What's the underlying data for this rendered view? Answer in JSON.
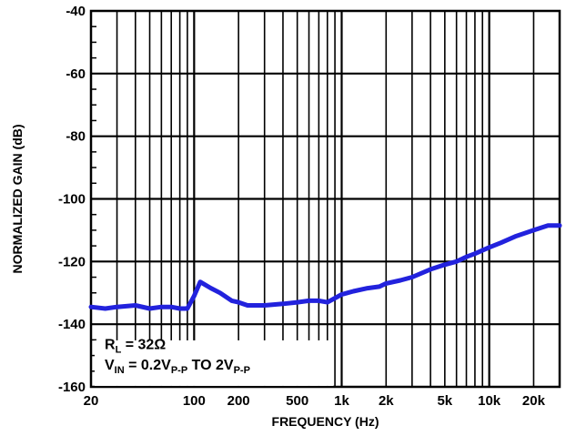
{
  "chart_data": {
    "type": "line",
    "title": "",
    "xlabel": "FREQUENCY (Hz)",
    "ylabel": "NORMALIZED GAIN (dB)",
    "xscale": "log",
    "xlim": [
      20,
      30000
    ],
    "ylim": [
      -160,
      -40
    ],
    "grid": true,
    "x_ticks": [
      20,
      100,
      200,
      500,
      1000,
      2000,
      5000,
      10000,
      20000
    ],
    "x_tick_labels": [
      "20",
      "100",
      "200",
      "500",
      "1k",
      "2k",
      "5k",
      "10k",
      "20k"
    ],
    "y_ticks": [
      -160,
      -140,
      -120,
      -100,
      -80,
      -60,
      -40
    ],
    "y_tick_labels": [
      "-160",
      "-140",
      "-120",
      "-100",
      "-80",
      "-60",
      "-40"
    ],
    "series_color": "#2222dd",
    "series": [
      {
        "x": [
          20,
          25,
          30,
          40,
          50,
          60,
          70,
          80,
          90,
          100,
          110,
          130,
          150,
          180,
          200,
          230,
          300,
          400,
          500,
          600,
          700,
          800,
          1000,
          1200,
          1500,
          1800,
          2000,
          2500,
          3000,
          4000,
          5000,
          6000,
          7000,
          8000,
          10000,
          12000,
          15000,
          20000,
          25000,
          30000
        ],
        "y": [
          -134.5,
          -135,
          -134.5,
          -134,
          -135,
          -134.5,
          -134.5,
          -135,
          -135,
          -131,
          -126.5,
          -128.5,
          -130,
          -132.5,
          -133,
          -134,
          -134,
          -133.5,
          -133,
          -132.5,
          -132.5,
          -133,
          -130.5,
          -129.5,
          -128.5,
          -128,
          -127,
          -126,
          -125,
          -122.5,
          -121,
          -120,
          -118.5,
          -117.5,
          -115.5,
          -114,
          -112,
          -110,
          -108.5,
          -108.5
        ]
      }
    ],
    "annotations": {
      "rl_main": "R",
      "rl_sub": "L",
      "rl_value": " = 32Ω",
      "vin_main": "V",
      "vin_sub": "IN",
      "vin_eq": " = 0.2V",
      "vin_pp1": "P-P",
      "vin_to": " TO 2V",
      "vin_pp2": "P-P"
    }
  }
}
